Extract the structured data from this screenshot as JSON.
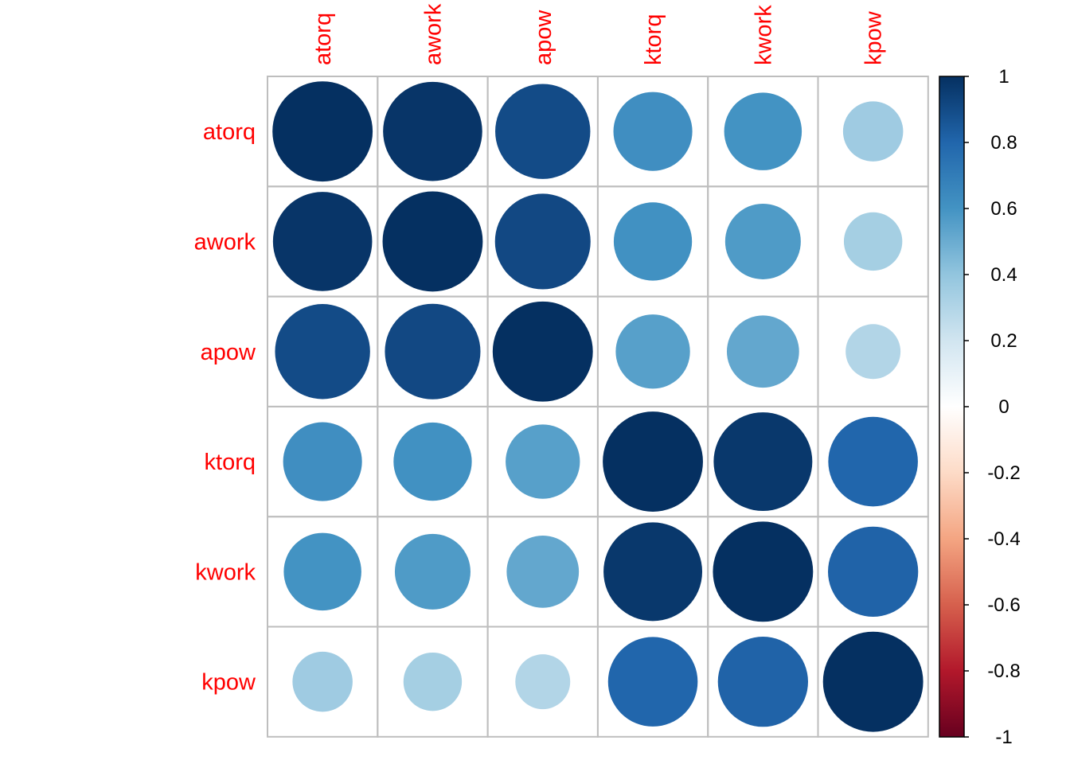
{
  "chart_data": {
    "type": "heatmap",
    "style": "corrplot-circle",
    "variables": [
      "atorq",
      "awork",
      "apow",
      "ktorq",
      "kwork",
      "kpow"
    ],
    "matrix": [
      [
        1.0,
        0.98,
        0.9,
        0.62,
        0.6,
        0.36
      ],
      [
        0.98,
        1.0,
        0.91,
        0.61,
        0.57,
        0.34
      ],
      [
        0.9,
        0.91,
        1.0,
        0.55,
        0.52,
        0.3
      ],
      [
        0.62,
        0.61,
        0.55,
        1.0,
        0.97,
        0.8
      ],
      [
        0.6,
        0.57,
        0.52,
        0.97,
        1.0,
        0.81
      ],
      [
        0.36,
        0.34,
        0.3,
        0.8,
        0.81,
        1.0
      ]
    ],
    "colorbar": {
      "range": [
        -1,
        1
      ],
      "ticks": [
        "1",
        "0.8",
        "0.6",
        "0.4",
        "0.2",
        "0",
        "-0.2",
        "-0.4",
        "-0.6",
        "-0.8",
        "-1"
      ],
      "palette": [
        "#67001F",
        "#B2182B",
        "#D6604D",
        "#F4A582",
        "#FDDBC7",
        "#FFFFFF",
        "#D1E5F0",
        "#92C5DE",
        "#4393C3",
        "#2166AC",
        "#053061"
      ]
    },
    "label_color": "#ff0000",
    "grid_color": "#bebebe"
  }
}
